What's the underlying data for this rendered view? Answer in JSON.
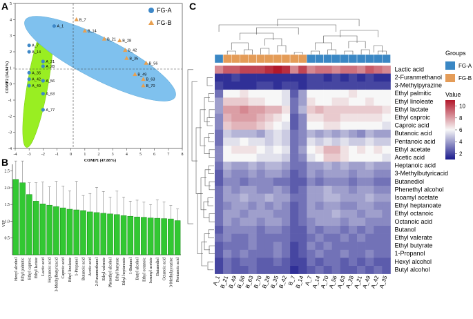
{
  "panels": {
    "a": "A",
    "b": "B",
    "c": "C"
  },
  "chart_data": [
    {
      "type": "scatter",
      "xlabel": "COMP1 (47.88%)",
      "ylabel": "COMP2 (34.94%)",
      "xlim": [
        -4,
        8
      ],
      "ylim": [
        -4,
        5
      ],
      "xticks": [
        "-4",
        "-3",
        "-2",
        "-1",
        "0",
        "1",
        "2",
        "3",
        "4",
        "5",
        "6",
        "7",
        "8"
      ],
      "yticks": [
        "5",
        "4",
        "3",
        "2",
        "1",
        "0",
        "-1",
        "-2",
        "-3",
        "-4"
      ],
      "series": [
        {
          "name": "FG-A",
          "color": "#3e88c8",
          "marker": "circle",
          "points": [
            {
              "label": "A_1",
              "x": -1.2,
              "y": 3.6
            },
            {
              "label": "A_7",
              "x": -3.0,
              "y": 2.4
            },
            {
              "label": "A_14",
              "x": -3.0,
              "y": 2.0
            },
            {
              "label": "A_21",
              "x": -2.0,
              "y": 1.4
            },
            {
              "label": "A_28",
              "x": -2.0,
              "y": 1.1
            },
            {
              "label": "A_35",
              "x": -3.0,
              "y": 0.7
            },
            {
              "label": "A_42",
              "x": -3.0,
              "y": 0.3
            },
            {
              "label": "A_56",
              "x": -2.0,
              "y": 0.2
            },
            {
              "label": "A_49",
              "x": -3.0,
              "y": -0.1
            },
            {
              "label": "A_63",
              "x": -2.0,
              "y": -0.6
            },
            {
              "label": "A_77",
              "x": -2.0,
              "y": -1.6
            }
          ]
        },
        {
          "name": "FG-B",
          "color": "#e8a050",
          "marker": "triangle",
          "points": [
            {
              "label": "B_7",
              "x": 0.4,
              "y": 4.0
            },
            {
              "label": "B_14",
              "x": 1.0,
              "y": 3.3
            },
            {
              "label": "B_21",
              "x": 2.4,
              "y": 2.8
            },
            {
              "label": "B_28",
              "x": 3.5,
              "y": 2.7
            },
            {
              "label": "B_42",
              "x": 3.9,
              "y": 2.1
            },
            {
              "label": "B_35",
              "x": 4.0,
              "y": 1.6
            },
            {
              "label": "B_56",
              "x": 5.4,
              "y": 1.3
            },
            {
              "label": "B_49",
              "x": 4.6,
              "y": 0.6
            },
            {
              "label": "B_63",
              "x": 5.2,
              "y": 0.3
            },
            {
              "label": "B_70",
              "x": 5.2,
              "y": -0.1
            }
          ]
        }
      ],
      "legend": {
        "position": "top-right",
        "entries": [
          "FG-A",
          "FG-B"
        ]
      }
    },
    {
      "type": "bar",
      "ylabel": "VIP",
      "ylim": [
        0,
        2.7
      ],
      "yticks": [
        "2.5",
        "2.0",
        "1.5",
        "1.0",
        "0.5"
      ],
      "bar_color": "#32c832",
      "categories": [
        "Hexyl alcohol",
        "Ethyl palmitic",
        "Ethyl caproic",
        "Ethyl lactate",
        "Lactic acid",
        "Heptanoic acid",
        "3-Methylbutyricacid",
        "Caproic acid",
        "Ethyl linoleate",
        "1-Propanol",
        "Butanoic acid",
        "Acetic acid",
        "2-Furanmethanol",
        "Ethyl valerate",
        "Phenethyl alcohol",
        "Ethyl butyrate",
        "Ethyl heptanoate",
        "1-Butanol",
        "Butyl alcohol",
        "Ethyl octanoic",
        "Isoamyl acetate",
        "Butanediol",
        "Octanoic acid",
        "3-Methylpyrazine",
        "Pentanoic acid"
      ],
      "values": [
        2.25,
        2.15,
        1.8,
        1.6,
        1.52,
        1.48,
        1.44,
        1.4,
        1.36,
        1.34,
        1.32,
        1.28,
        1.26,
        1.24,
        1.22,
        1.2,
        1.17,
        1.15,
        1.13,
        1.12,
        1.1,
        1.09,
        1.08,
        1.07,
        1.02
      ],
      "errors": [
        0.55,
        0.65,
        0.35,
        0.55,
        0.65,
        0.55,
        0.75,
        0.65,
        0.55,
        0.85,
        0.45,
        0.55,
        0.75,
        0.65,
        0.5,
        0.7,
        0.55,
        0.45,
        0.5,
        0.45,
        0.4,
        0.55,
        0.5,
        0.4,
        0.35
      ]
    },
    {
      "type": "heatmap",
      "legend_title": "Value",
      "groups_title": "Groups",
      "groups": [
        {
          "name": "FG-A",
          "color": "#3a87c4"
        },
        {
          "name": "FG-B",
          "color": "#e49c58"
        }
      ],
      "color_scale": {
        "min": 1,
        "max": 11,
        "ticks": [
          "10",
          "8",
          "6",
          "4",
          "2"
        ],
        "low": "#1a1a8c",
        "mid": "#f7f7f7",
        "high": "#b2182b"
      },
      "columns": [
        "A_1",
        "B_21",
        "B_49",
        "B_56",
        "B_63",
        "B_70",
        "B_28",
        "B_35",
        "B_42",
        "B_7",
        "B_14",
        "A_7",
        "A_14",
        "A_70",
        "A_56",
        "A_63",
        "A_28",
        "A_21",
        "A_49",
        "A_42",
        "A_35"
      ],
      "column_groups": [
        "FG-A",
        "FG-B",
        "FG-B",
        "FG-B",
        "FG-B",
        "FG-B",
        "FG-B",
        "FG-B",
        "FG-B",
        "FG-B",
        "FG-B",
        "FG-A",
        "FG-A",
        "FG-A",
        "FG-A",
        "FG-A",
        "FG-A",
        "FG-A",
        "FG-A",
        "FG-A",
        "FG-A"
      ],
      "rows": [
        "Lactic acid",
        "2-Furanmethanol",
        "3-Methylpyrazine",
        "Ethyl palmitic",
        "Ethyl linoleate",
        "Ethyl lactate",
        "Ethyl caproic",
        "Caproic acid",
        "Butanoic acid",
        "Pentanoic acid",
        "Ethyl acetate",
        "Acetic acid",
        "Heptanoic acid",
        "3-Methylbutyricacid",
        "Butanediol",
        "Phenethyl alcohol",
        "Isoamyl acetate",
        "Ethyl heptanoate",
        "Ethyl octanoic",
        "Octanoic acid",
        "Butanol",
        "Ethyl valerate",
        "Ethyl butyrate",
        "1-Propanol",
        "Hexyl alcohol",
        "Butyl alcohol"
      ],
      "values": [
        [
          8.5,
          9.5,
          9.5,
          10,
          10,
          10,
          10.5,
          11,
          10.5,
          8.5,
          10,
          8.5,
          9,
          9,
          8.5,
          9,
          9,
          8.5,
          9.5,
          9,
          8.5
        ],
        [
          1.5,
          1.5,
          2,
          1.5,
          1.5,
          1.5,
          1.5,
          1.5,
          1.5,
          1.5,
          1.5,
          2,
          2,
          1.5,
          2,
          1.5,
          2,
          1.5,
          2,
          1.5,
          1.5
        ],
        [
          2,
          1.5,
          1.5,
          1.5,
          1.5,
          2,
          2,
          1.5,
          2,
          2,
          1.5,
          2,
          2,
          2,
          2,
          2,
          2,
          2,
          2,
          2,
          2
        ],
        [
          3,
          6,
          6,
          6.5,
          6,
          6,
          6,
          6,
          5.5,
          2.5,
          4,
          6,
          6,
          6,
          6,
          6,
          6.5,
          6,
          6,
          6,
          6
        ],
        [
          4,
          7,
          7,
          7,
          6.5,
          6.5,
          6,
          6,
          5.5,
          3,
          4,
          6.5,
          6,
          6,
          6.5,
          6.5,
          6,
          6,
          6.5,
          6,
          6
        ],
        [
          4,
          8,
          8,
          8.5,
          8,
          8,
          7.5,
          7.5,
          6.5,
          3,
          4.5,
          7,
          7.5,
          7,
          7,
          7,
          7,
          7,
          7,
          7,
          6.5
        ],
        [
          3.5,
          7.5,
          8,
          8,
          8,
          7.5,
          7,
          6.5,
          6,
          2.5,
          3.5,
          6.5,
          6.5,
          7,
          7,
          6.5,
          6.5,
          6.5,
          6.5,
          6.5,
          6
        ],
        [
          3.5,
          7,
          7.5,
          7.5,
          7.5,
          7,
          6.5,
          6,
          5.5,
          2.5,
          3.5,
          6,
          6,
          6.5,
          6.5,
          6,
          6,
          6,
          6,
          6,
          5.5
        ],
        [
          3,
          5,
          4.5,
          4.5,
          4.5,
          4,
          5,
          5.5,
          5,
          3,
          3.5,
          4.5,
          4,
          4.5,
          4,
          4.5,
          4,
          3.5,
          4.5,
          4,
          4
        ],
        [
          3,
          5.5,
          5.5,
          6,
          5.5,
          5.5,
          5,
          5.5,
          5,
          3,
          3.5,
          5.5,
          5,
          5.5,
          5,
          5.5,
          5,
          5,
          5.5,
          5,
          5
        ],
        [
          3.5,
          6,
          6.5,
          6.5,
          6.5,
          6,
          5.5,
          6,
          5.5,
          3,
          4,
          6,
          6.5,
          7.5,
          7.5,
          6.5,
          6,
          6.5,
          6,
          6.5,
          6
        ],
        [
          3.5,
          6,
          6,
          6,
          6,
          5.5,
          5.5,
          5.5,
          5,
          3,
          3.5,
          5.5,
          6,
          7,
          7,
          6.5,
          6,
          6,
          6,
          6,
          5.5
        ],
        [
          3,
          4.5,
          4,
          4,
          4.5,
          4,
          4.5,
          4.5,
          4,
          3,
          3,
          4,
          4,
          4.5,
          4,
          4.5,
          4,
          4,
          4.5,
          4,
          4
        ],
        [
          2.5,
          4,
          3.5,
          3.5,
          4,
          3.5,
          4,
          4,
          3.5,
          2.5,
          3,
          4,
          3.5,
          4,
          4,
          4,
          3.5,
          4,
          4,
          3.5,
          3.5
        ],
        [
          2.5,
          3.5,
          3.5,
          3,
          3.5,
          3.5,
          3.5,
          3,
          3,
          2.5,
          2.5,
          3.5,
          3,
          3.5,
          3.5,
          3.5,
          3,
          3.5,
          3.5,
          3,
          3
        ],
        [
          3,
          4,
          3.5,
          4,
          4,
          3.5,
          3.5,
          4,
          3.5,
          2.5,
          3,
          4,
          4,
          4.5,
          4,
          4,
          3.5,
          4,
          4,
          3.5,
          3.5
        ],
        [
          3,
          4,
          4,
          4.5,
          4,
          4,
          4.5,
          4,
          4,
          3,
          3,
          4,
          4,
          4.5,
          4.5,
          4,
          4,
          4,
          4.5,
          4,
          4
        ],
        [
          3,
          3.5,
          4,
          4,
          3.5,
          4,
          3.5,
          4,
          3.5,
          2.5,
          3,
          4,
          3.5,
          4,
          4,
          3.5,
          3.5,
          4,
          4,
          3.5,
          3.5
        ],
        [
          3,
          4,
          4,
          3.5,
          4,
          4,
          4,
          3.5,
          3.5,
          2.5,
          3,
          4,
          4,
          4,
          4.5,
          4,
          4,
          3.5,
          4,
          4,
          3.5
        ],
        [
          3,
          4,
          3.5,
          4,
          4,
          3.5,
          4,
          4,
          3.5,
          2.5,
          3,
          3.5,
          4,
          4,
          4,
          3.5,
          4,
          4,
          3.5,
          3.5,
          3.5
        ],
        [
          2.5,
          3.5,
          3.5,
          3.5,
          3.5,
          3,
          3.5,
          3.5,
          3,
          2.5,
          2.5,
          3.5,
          3,
          3.5,
          3.5,
          3,
          3.5,
          3,
          3.5,
          3,
          3
        ],
        [
          3,
          3.5,
          3,
          3,
          3.5,
          3,
          3,
          3,
          3,
          2.5,
          2.5,
          3,
          3.5,
          3,
          3,
          3.5,
          3,
          3.5,
          3,
          3,
          3
        ],
        [
          2.5,
          3,
          3,
          3,
          3.5,
          3,
          3,
          3.5,
          3,
          2,
          2.5,
          3.5,
          3,
          3.5,
          3,
          3,
          3,
          3,
          3,
          3,
          3
        ],
        [
          2.5,
          3.5,
          3,
          3.5,
          3,
          3,
          3,
          3.5,
          3,
          2,
          2.5,
          3,
          3.5,
          3,
          3,
          3.5,
          3,
          3,
          3.5,
          3,
          3
        ],
        [
          2,
          3,
          2.5,
          3,
          3,
          2.5,
          2.5,
          3,
          2.5,
          2,
          2,
          3,
          2.5,
          3,
          3,
          2.5,
          3,
          2.5,
          3,
          2.5,
          2.5
        ],
        [
          2,
          3,
          2.5,
          2.5,
          3,
          2.5,
          2.5,
          2.5,
          2.5,
          1.5,
          2,
          2.5,
          3,
          2.5,
          3,
          2.5,
          2.5,
          3,
          2.5,
          3,
          2.5
        ]
      ]
    }
  ]
}
